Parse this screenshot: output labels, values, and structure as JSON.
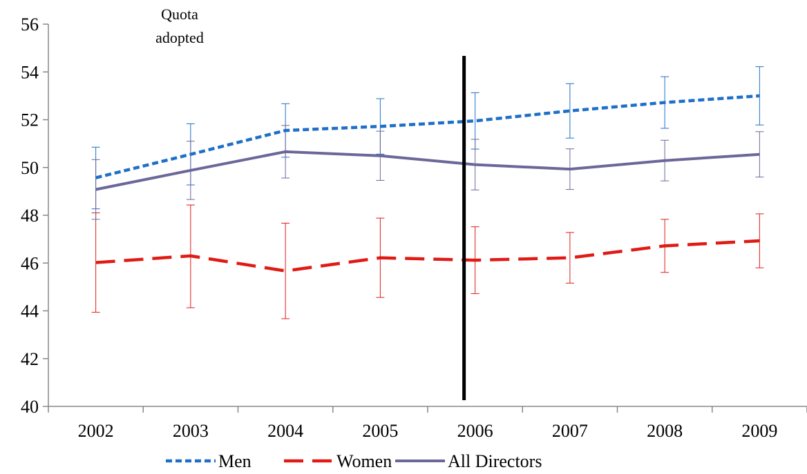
{
  "chart_data": {
    "type": "line",
    "title": "",
    "xlabel": "",
    "ylabel": "",
    "categories": [
      "2002",
      "2003",
      "2004",
      "2005",
      "2006",
      "2007",
      "2008",
      "2009"
    ],
    "y_ticks": [
      "40",
      "42",
      "44",
      "46",
      "48",
      "50",
      "52",
      "54",
      "56"
    ],
    "ylim": [
      40,
      56
    ],
    "grid": false,
    "legend_position": "bottom",
    "annotation": {
      "lines": [
        "Quota",
        "adopted"
      ],
      "vertical_line_at": "2006"
    },
    "series": [
      {
        "name": "Men",
        "style": "dotted",
        "color": "#1e6fc8",
        "values": [
          49.57,
          50.55,
          51.55,
          51.72,
          51.95,
          52.37,
          52.72,
          53.0
        ],
        "upper": [
          50.85,
          51.83,
          52.67,
          52.88,
          53.13,
          53.51,
          53.8,
          54.22
        ],
        "lower": [
          48.27,
          49.27,
          50.43,
          50.56,
          50.77,
          51.23,
          51.64,
          51.78
        ]
      },
      {
        "name": "Women",
        "style": "dashed",
        "color": "#e01a14",
        "values": [
          46.02,
          46.3,
          45.67,
          46.22,
          46.12,
          46.22,
          46.72,
          46.93
        ],
        "upper": [
          48.1,
          48.43,
          47.67,
          47.88,
          47.52,
          47.28,
          47.83,
          48.06
        ],
        "lower": [
          43.94,
          44.13,
          43.67,
          44.56,
          44.72,
          45.16,
          45.61,
          45.8
        ]
      },
      {
        "name": "All Directors",
        "style": "solid",
        "color": "#6b6799",
        "values": [
          49.08,
          49.88,
          50.66,
          50.49,
          50.12,
          49.93,
          50.29,
          50.55
        ],
        "upper": [
          50.33,
          51.1,
          51.76,
          51.52,
          51.18,
          50.78,
          51.14,
          51.5
        ],
        "lower": [
          47.83,
          48.66,
          49.56,
          49.46,
          49.06,
          49.08,
          49.44,
          49.6
        ]
      }
    ]
  }
}
